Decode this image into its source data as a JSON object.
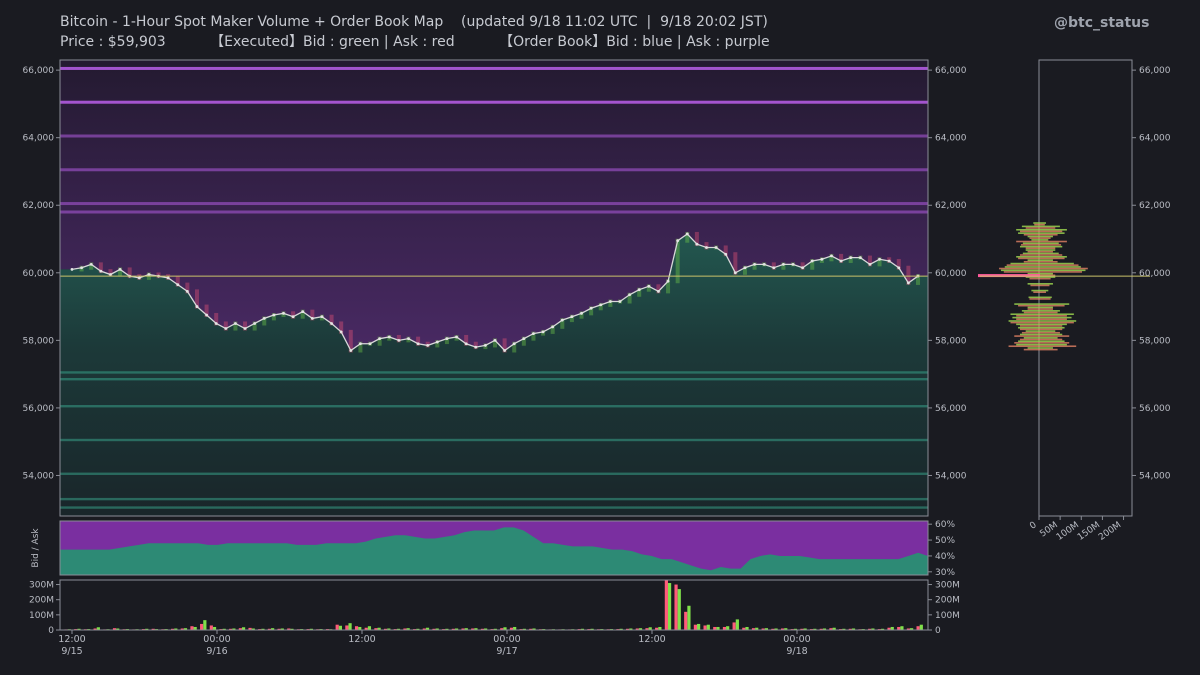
{
  "header": {
    "title": "Bitcoin - 1-Hour Spot Maker Volume + Order Book Map    (updated 9/18 11:02 UTC  |  9/18 20:02 JST)",
    "subtitle": "Price : $59,903          【Executed】Bid : green | Ask : red          【Order Book】Bid : blue | Ask : purple",
    "handle": "@btc_status"
  },
  "colors": {
    "bg": "#1a1b21",
    "ask_book": "#7b3fa0",
    "bid_book": "#2e8c78",
    "executed_bid": "#7fe04a",
    "executed_ask": "#ff5a7a",
    "price_line": "#d8d8d8",
    "current_price_line": "#c9c26a"
  },
  "chart_data": [
    {
      "type": "line",
      "name": "price",
      "x_ticks": [
        {
          "time": "12:00",
          "date": "9/15"
        },
        {
          "time": "00:00",
          "date": "9/16"
        },
        {
          "time": "12:00",
          "date": ""
        },
        {
          "time": "00:00",
          "date": "9/17"
        },
        {
          "time": "12:00",
          "date": ""
        },
        {
          "time": "00:00",
          "date": "9/18"
        }
      ],
      "ylim": [
        52800,
        66300
      ],
      "y_ticks": [
        "54,000",
        "56,000",
        "58,000",
        "60,000",
        "62,000",
        "64,000",
        "66,000"
      ],
      "current_price": 59903,
      "values": [
        60100,
        60150,
        60250,
        60050,
        59950,
        60100,
        59900,
        59850,
        59950,
        59900,
        59850,
        59650,
        59450,
        59000,
        58750,
        58500,
        58350,
        58500,
        58350,
        58500,
        58650,
        58750,
        58800,
        58700,
        58850,
        58650,
        58700,
        58500,
        58250,
        57700,
        57900,
        57900,
        58050,
        58100,
        58000,
        58050,
        57900,
        57850,
        57950,
        58050,
        58100,
        57900,
        57800,
        57850,
        58000,
        57700,
        57900,
        58050,
        58200,
        58250,
        58400,
        58600,
        58700,
        58800,
        58950,
        59050,
        59150,
        59150,
        59350,
        59500,
        59600,
        59450,
        59750,
        60950,
        61150,
        60850,
        60750,
        60750,
        60550,
        60000,
        60150,
        60250,
        60250,
        60150,
        60250,
        60250,
        60150,
        60350,
        60400,
        60500,
        60350,
        60450,
        60450,
        60250,
        60400,
        60350,
        60150,
        59700,
        59903
      ],
      "ask_walls": [
        66050,
        65050,
        64050,
        63050,
        62050,
        61800
      ],
      "bid_walls": [
        57050,
        56850,
        56050,
        55050,
        54050,
        53300,
        53050
      ]
    },
    {
      "type": "area",
      "name": "bid_ask_ratio",
      "ylabel": "Bid / Ask",
      "y_ticks": [
        "60%",
        "50%",
        "40%",
        "30%"
      ],
      "ylim": [
        28,
        62
      ],
      "bid_share": [
        44,
        44,
        44,
        44,
        44,
        44,
        45,
        46,
        47,
        48,
        48,
        48,
        48,
        48,
        48,
        47,
        47,
        48,
        48,
        48,
        48,
        48,
        48,
        48,
        47,
        47,
        47,
        48,
        48,
        48,
        48,
        49,
        51,
        52,
        53,
        53,
        52,
        51,
        51,
        52,
        53,
        55,
        56,
        56,
        56,
        58,
        58,
        56,
        52,
        48,
        48,
        47,
        46,
        46,
        46,
        45,
        44,
        44,
        43,
        41,
        40,
        38,
        38,
        36,
        34,
        32,
        31,
        33,
        32,
        32,
        38,
        40,
        41,
        40,
        40,
        40,
        39,
        38,
        38,
        38,
        38,
        38,
        38,
        38,
        38,
        38,
        40,
        42,
        40
      ]
    },
    {
      "type": "bar",
      "name": "executed_volume",
      "y_ticks": [
        "300M",
        "200M",
        "100M",
        "0"
      ],
      "ylim": [
        0,
        330
      ],
      "bid_values": [
        5,
        8,
        6,
        18,
        5,
        10,
        6,
        5,
        8,
        6,
        6,
        10,
        12,
        20,
        65,
        20,
        8,
        10,
        18,
        10,
        8,
        12,
        10,
        8,
        6,
        8,
        6,
        5,
        28,
        45,
        20,
        25,
        15,
        10,
        8,
        12,
        8,
        15,
        10,
        8,
        10,
        12,
        12,
        10,
        8,
        18,
        20,
        8,
        10,
        6,
        5,
        5,
        5,
        8,
        8,
        6,
        6,
        8,
        10,
        12,
        18,
        20,
        310,
        270,
        160,
        40,
        35,
        20,
        25,
        70,
        20,
        15,
        12,
        10,
        12,
        8,
        10,
        8,
        10,
        15,
        8,
        10,
        6,
        10,
        8,
        20,
        25,
        12,
        35
      ],
      "ask_values": [
        4,
        6,
        5,
        10,
        4,
        12,
        5,
        4,
        6,
        8,
        5,
        8,
        10,
        25,
        40,
        30,
        6,
        8,
        12,
        14,
        6,
        8,
        8,
        10,
        5,
        6,
        5,
        6,
        35,
        30,
        25,
        15,
        12,
        8,
        6,
        10,
        6,
        10,
        8,
        6,
        8,
        10,
        10,
        8,
        6,
        12,
        15,
        6,
        8,
        5,
        4,
        4,
        4,
        6,
        6,
        5,
        5,
        6,
        8,
        10,
        12,
        15,
        330,
        300,
        120,
        35,
        30,
        20,
        20,
        50,
        15,
        12,
        10,
        8,
        10,
        6,
        8,
        6,
        8,
        12,
        6,
        8,
        5,
        8,
        6,
        15,
        20,
        10,
        25
      ]
    },
    {
      "type": "bar",
      "orientation": "horizontal",
      "name": "volume_profile",
      "x_ticks": [
        "0",
        "50M",
        "100M",
        "150M",
        "200M"
      ],
      "xlim": [
        0,
        220
      ],
      "levels": [
        61450,
        61350,
        61250,
        61150,
        61050,
        60950,
        60850,
        60750,
        60650,
        60550,
        60450,
        60350,
        60250,
        60150,
        60050,
        59950,
        59850,
        59650,
        59450,
        59250,
        59050,
        58950,
        58850,
        58750,
        58650,
        58550,
        58450,
        58350,
        58250,
        58150,
        58050,
        57950,
        57850,
        57750
      ],
      "bid_values": [
        30,
        90,
        120,
        110,
        60,
        40,
        85,
        100,
        70,
        85,
        120,
        60,
        150,
        180,
        200,
        60,
        70,
        60,
        40,
        55,
        130,
        60,
        90,
        150,
        140,
        160,
        120,
        110,
        70,
        100,
        80,
        110,
        120,
        60
      ],
      "ask_values": [
        25,
        70,
        100,
        80,
        50,
        120,
        95,
        70,
        60,
        100,
        110,
        80,
        170,
        210,
        185,
        70,
        50,
        45,
        30,
        50,
        110,
        60,
        80,
        120,
        120,
        150,
        100,
        100,
        90,
        130,
        100,
        130,
        160,
        80
      ]
    }
  ]
}
